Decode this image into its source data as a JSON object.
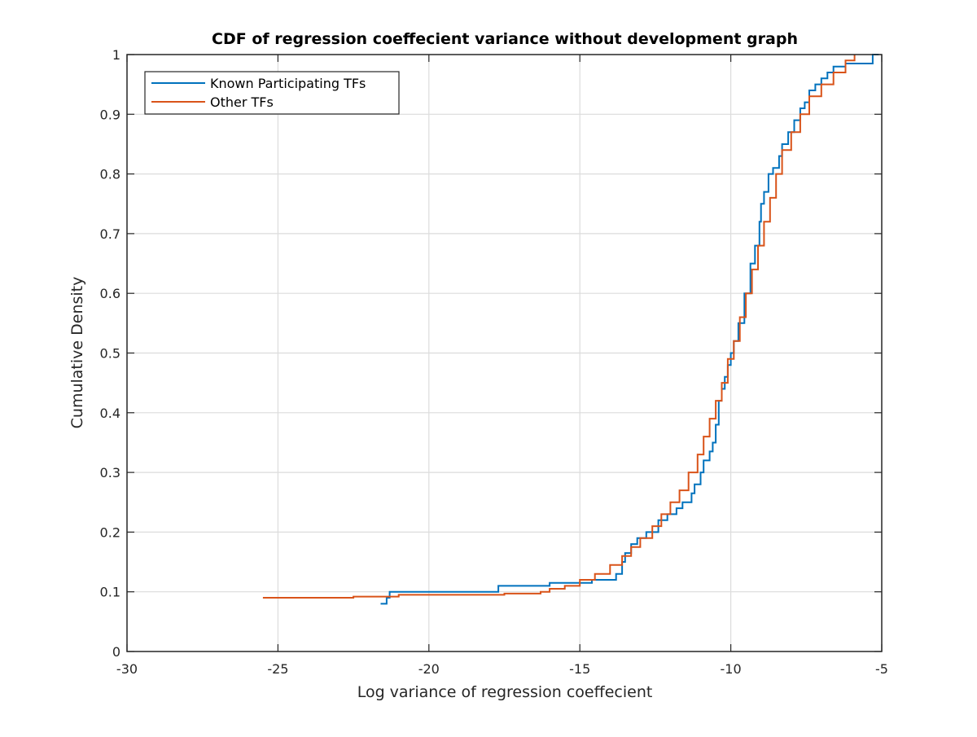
{
  "chart_data": {
    "type": "line",
    "title": "CDF of regression coeffecient variance without development graph",
    "xlabel": "Log variance of regression coeffecient",
    "ylabel": "Cumulative Density",
    "xlim": [
      -30,
      -5
    ],
    "ylim": [
      0,
      1
    ],
    "xticks": [
      -30,
      -25,
      -20,
      -15,
      -10,
      -5
    ],
    "xtick_labels": [
      "-30",
      "-25",
      "-20",
      "-15",
      "-10",
      "-5"
    ],
    "yticks": [
      0,
      0.1,
      0.2,
      0.3,
      0.4,
      0.5,
      0.6,
      0.7,
      0.8,
      0.9,
      1
    ],
    "ytick_labels": [
      "0",
      "0.1",
      "0.2",
      "0.3",
      "0.4",
      "0.5",
      "0.6",
      "0.7",
      "0.8",
      "0.9",
      "1"
    ],
    "grid": true,
    "legend_position": "top-left",
    "series": [
      {
        "name": "Known Participating TFs",
        "color": "#0072BD",
        "x": [
          -21.6,
          -21.4,
          -21.3,
          -17.7,
          -16.0,
          -14.6,
          -13.8,
          -13.6,
          -13.5,
          -13.3,
          -13.1,
          -12.8,
          -12.4,
          -12.1,
          -11.8,
          -11.6,
          -11.3,
          -11.2,
          -11.0,
          -10.9,
          -10.7,
          -10.6,
          -10.5,
          -10.4,
          -10.3,
          -10.2,
          -10.1,
          -10.0,
          -9.9,
          -9.75,
          -9.55,
          -9.35,
          -9.2,
          -9.05,
          -9.0,
          -8.9,
          -8.75,
          -8.6,
          -8.4,
          -8.3,
          -8.1,
          -7.9,
          -7.7,
          -7.55,
          -7.4,
          -7.2,
          -7.0,
          -6.8,
          -6.6,
          -6.2,
          -5.3,
          -5.1
        ],
        "y": [
          0.08,
          0.09,
          0.1,
          0.11,
          0.115,
          0.12,
          0.13,
          0.15,
          0.165,
          0.18,
          0.19,
          0.2,
          0.22,
          0.23,
          0.24,
          0.25,
          0.265,
          0.28,
          0.3,
          0.32,
          0.335,
          0.35,
          0.38,
          0.42,
          0.44,
          0.46,
          0.48,
          0.5,
          0.52,
          0.55,
          0.6,
          0.65,
          0.68,
          0.72,
          0.75,
          0.77,
          0.8,
          0.81,
          0.83,
          0.85,
          0.87,
          0.89,
          0.91,
          0.92,
          0.94,
          0.95,
          0.96,
          0.97,
          0.98,
          0.985,
          1.0,
          1.0
        ]
      },
      {
        "name": "Other TFs",
        "color": "#D95319",
        "x": [
          -25.5,
          -22.5,
          -21.0,
          -17.5,
          -16.3,
          -16.0,
          -15.5,
          -15.0,
          -14.5,
          -14.0,
          -13.6,
          -13.3,
          -13.0,
          -12.6,
          -12.3,
          -12.0,
          -11.7,
          -11.4,
          -11.1,
          -10.9,
          -10.7,
          -10.5,
          -10.3,
          -10.1,
          -9.9,
          -9.7,
          -9.5,
          -9.3,
          -9.1,
          -8.9,
          -8.7,
          -8.5,
          -8.3,
          -8.0,
          -7.7,
          -7.4,
          -7.0,
          -6.6,
          -6.2,
          -5.9
        ],
        "y": [
          0.09,
          0.092,
          0.095,
          0.097,
          0.1,
          0.105,
          0.11,
          0.12,
          0.13,
          0.145,
          0.16,
          0.175,
          0.19,
          0.21,
          0.23,
          0.25,
          0.27,
          0.3,
          0.33,
          0.36,
          0.39,
          0.42,
          0.45,
          0.49,
          0.52,
          0.56,
          0.6,
          0.64,
          0.68,
          0.72,
          0.76,
          0.8,
          0.84,
          0.87,
          0.9,
          0.93,
          0.95,
          0.97,
          0.99,
          1.0
        ]
      }
    ]
  }
}
